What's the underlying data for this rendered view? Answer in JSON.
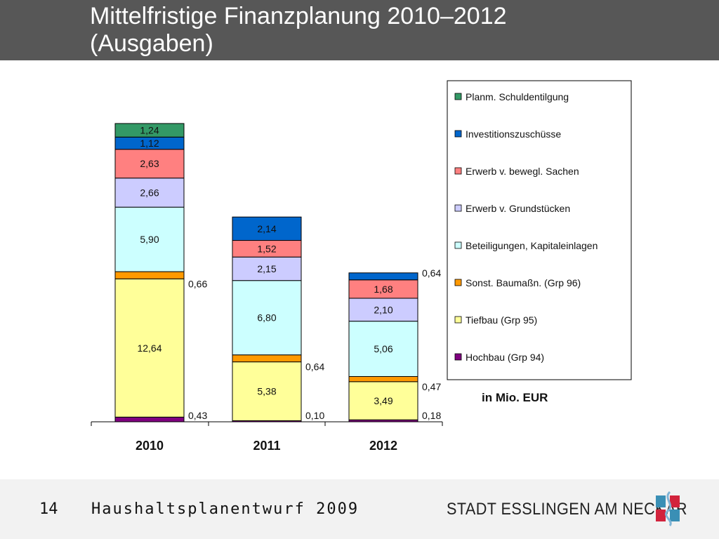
{
  "header": {
    "title_line1": "Mittelfristige Finanzplanung 2010–2012",
    "title_line2": "(Ausgaben)"
  },
  "footer": {
    "page_number": "14",
    "text": "Haushaltsplanentwurf 2009",
    "city": "STADT ESSLINGEN AM NECKAR"
  },
  "unit_label": "in Mio. EUR",
  "colors": {
    "Hochbau": "#800080",
    "Tiefbau": "#ffff99",
    "Sonst": "#ff9900",
    "Beteiligungen": "#ccffff",
    "Grundstuecke": "#ccccff",
    "Sachen": "#ff8080",
    "Investitionszuschuesse": "#0066cc",
    "Schuldentilgung": "#339966"
  },
  "chart_data": {
    "type": "bar",
    "stacked": true,
    "categories": [
      "2010",
      "2011",
      "2012"
    ],
    "series": [
      {
        "name": "Hochbau (Grp 94)",
        "key": "Hochbau",
        "values": [
          0.43,
          0.1,
          0.18
        ],
        "labels": [
          "0,43",
          "0,10",
          "0,18"
        ]
      },
      {
        "name": "Tiefbau (Grp 95)",
        "key": "Tiefbau",
        "values": [
          12.64,
          5.38,
          3.49
        ],
        "labels": [
          "12,64",
          "5,38",
          "3,49"
        ]
      },
      {
        "name": "Sonst. Baumaßn. (Grp 96)",
        "key": "Sonst",
        "values": [
          0.66,
          0.64,
          0.47
        ],
        "labels": [
          "0,66",
          "0,64",
          "0,47"
        ]
      },
      {
        "name": "Beteiligungen, Kapitaleinlagen",
        "key": "Beteiligungen",
        "values": [
          5.9,
          6.8,
          5.06
        ],
        "labels": [
          "5,90",
          "6,80",
          "5,06"
        ]
      },
      {
        "name": "Erwerb v. Grundstücken",
        "key": "Grundstuecke",
        "values": [
          2.66,
          2.15,
          2.1
        ],
        "labels": [
          "2,66",
          "2,15",
          "2,10"
        ]
      },
      {
        "name": "Erwerb v. bewegl. Sachen",
        "key": "Sachen",
        "values": [
          2.63,
          1.52,
          1.68
        ],
        "labels": [
          "2,63",
          "1,52",
          "1,68"
        ]
      },
      {
        "name": "Investitionszuschüsse",
        "key": "Investitionszuschuesse",
        "values": [
          1.12,
          2.14,
          0.64
        ],
        "labels": [
          "1,12",
          "2,14",
          "0,64"
        ]
      },
      {
        "name": "Planm. Schuldentilgung",
        "key": "Schuldentilgung",
        "values": [
          1.24,
          0,
          0
        ],
        "labels": [
          "1,24",
          "",
          ""
        ]
      }
    ],
    "legend_order": [
      "Planm. Schuldentilgung",
      "Investitionszuschüsse",
      "Erwerb v. bewegl. Sachen",
      "Erwerb v. Grundstücken",
      "Beteiligungen, Kapitaleinlagen",
      "Sonst. Baumaßn. (Grp 96)",
      "Tiefbau (Grp 95)",
      "Hochbau (Grp 94)"
    ],
    "legend_position": "right",
    "grid": false,
    "ylim": [
      0,
      28.5
    ]
  }
}
